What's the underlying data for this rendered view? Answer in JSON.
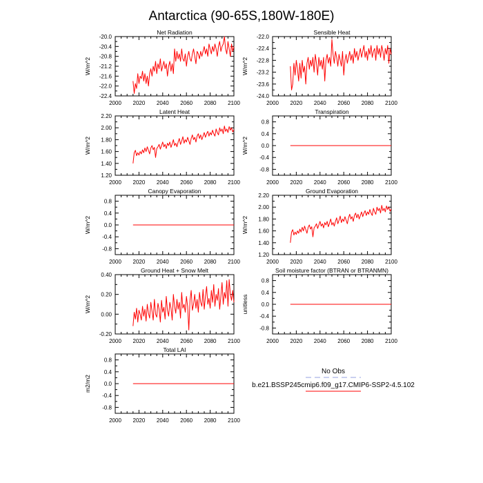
{
  "figure": {
    "title": "Antarctica (90-65S,180W-180E)"
  },
  "legend": {
    "entries": [
      {
        "label": "No Obs",
        "color": "#aab4e6",
        "style": "dashed"
      },
      {
        "label": "b.e21.BSSP245cmip6.f09_g17.CMIP6-SSP2-4.5.102",
        "color": "#ff0000",
        "style": "solid"
      }
    ]
  },
  "chart_data": [
    {
      "type": "line",
      "title": "Net Radiation",
      "ylabel": "W/m^2",
      "xlabel": "",
      "xlim": [
        2000,
        2100
      ],
      "ylim": [
        -22.4,
        -20.0
      ],
      "xticks": [
        "2000",
        "2020",
        "2040",
        "2060",
        "2080",
        "2100"
      ],
      "yticks": [
        "-22.4",
        "-22.0",
        "-21.6",
        "-21.2",
        "-20.8",
        "-20.4",
        "-20.0"
      ],
      "series": [
        {
          "color": "#ff0000",
          "x_start": 2015,
          "x_end": 2100,
          "values": [
            -21.8,
            -22.3,
            -21.9,
            -22.1,
            -21.5,
            -21.9,
            -21.6,
            -21.7,
            -21.4,
            -21.8,
            -21.5,
            -21.9,
            -21.6,
            -22.0,
            -21.5,
            -21.3,
            -21.6,
            -21.2,
            -21.4,
            -21.0,
            -21.5,
            -21.1,
            -21.3,
            -20.9,
            -21.4,
            -21.2,
            -21.0,
            -21.3,
            -21.1,
            -21.6,
            -21.2,
            -21.0,
            -21.4,
            -21.1,
            -21.5,
            -20.5,
            -21.0,
            -20.6,
            -20.9,
            -20.7,
            -21.0,
            -20.5,
            -20.9,
            -21.0,
            -20.7,
            -21.2,
            -20.8,
            -20.6,
            -20.9,
            -21.0,
            -20.7,
            -20.5,
            -20.8,
            -21.1,
            -20.6,
            -20.7,
            -20.9,
            -20.6,
            -20.8,
            -20.6,
            -20.4,
            -20.7,
            -20.5,
            -20.8,
            -20.3,
            -20.5,
            -20.7,
            -20.4,
            -20.6,
            -20.3,
            -20.5,
            -20.8,
            -20.4,
            -20.2,
            -20.6,
            -20.4,
            -20.3,
            -20.0,
            -20.5,
            -20.7,
            -20.2,
            -20.5,
            -20.8,
            -20.3,
            -20.6,
            -20.4
          ]
        }
      ]
    },
    {
      "type": "line",
      "title": "Sensible Heat",
      "ylabel": "W/m^2",
      "xlabel": "",
      "xlim": [
        2000,
        2100
      ],
      "ylim": [
        -24.0,
        -22.0
      ],
      "xticks": [
        "2000",
        "2020",
        "2040",
        "2060",
        "2080",
        "2100"
      ],
      "yticks": [
        "-24.0",
        "-23.6",
        "-23.2",
        "-22.8",
        "-22.4",
        "-22.0"
      ],
      "series": [
        {
          "color": "#ff0000",
          "x_start": 2015,
          "x_end": 2100,
          "values": [
            -23.0,
            -23.8,
            -23.6,
            -22.9,
            -23.3,
            -22.8,
            -23.1,
            -23.5,
            -22.9,
            -23.4,
            -22.8,
            -23.2,
            -23.0,
            -23.6,
            -22.9,
            -22.7,
            -23.1,
            -22.8,
            -23.0,
            -22.7,
            -23.2,
            -22.6,
            -22.9,
            -23.3,
            -22.7,
            -23.0,
            -22.8,
            -23.1,
            -22.7,
            -23.5,
            -22.8,
            -22.6,
            -22.9,
            -22.7,
            -23.0,
            -22.1,
            -22.6,
            -22.9,
            -22.5,
            -22.7,
            -23.0,
            -22.6,
            -22.8,
            -23.0,
            -22.5,
            -23.3,
            -22.8,
            -22.6,
            -22.9,
            -22.7,
            -22.5,
            -22.8,
            -22.6,
            -22.9,
            -22.4,
            -22.7,
            -22.5,
            -22.8,
            -22.6,
            -22.4,
            -22.7,
            -22.5,
            -22.3,
            -22.7,
            -22.5,
            -22.8,
            -22.4,
            -22.6,
            -22.3,
            -22.7,
            -22.5,
            -22.4,
            -22.8,
            -22.3,
            -22.6,
            -22.4,
            -22.7,
            -22.3,
            -22.5,
            -22.8,
            -22.4,
            -22.6,
            -22.3,
            -22.9,
            -22.4,
            -22.6
          ]
        }
      ]
    },
    {
      "type": "line",
      "title": "Latent Heat",
      "ylabel": "W/m^2",
      "xlabel": "",
      "xlim": [
        2000,
        2100
      ],
      "ylim": [
        1.2,
        2.2
      ],
      "xticks": [
        "2000",
        "2020",
        "2040",
        "2060",
        "2080",
        "2100"
      ],
      "yticks": [
        "1.20",
        "1.40",
        "1.60",
        "1.80",
        "2.00",
        "2.20"
      ],
      "series": [
        {
          "color": "#ff0000",
          "x_start": 2015,
          "x_end": 2100,
          "values": [
            1.4,
            1.58,
            1.62,
            1.53,
            1.58,
            1.54,
            1.6,
            1.56,
            1.63,
            1.58,
            1.66,
            1.6,
            1.68,
            1.62,
            1.56,
            1.66,
            1.7,
            1.63,
            1.67,
            1.5,
            1.65,
            1.68,
            1.72,
            1.64,
            1.7,
            1.76,
            1.68,
            1.72,
            1.65,
            1.74,
            1.7,
            1.76,
            1.67,
            1.73,
            1.8,
            1.7,
            1.74,
            1.68,
            1.76,
            1.82,
            1.72,
            1.78,
            1.85,
            1.74,
            1.8,
            1.76,
            1.84,
            1.78,
            1.72,
            1.82,
            1.88,
            1.8,
            1.84,
            1.76,
            1.86,
            1.9,
            1.82,
            1.88,
            1.8,
            1.86,
            1.92,
            1.84,
            1.9,
            1.94,
            1.86,
            1.92,
            1.88,
            1.96,
            1.9,
            1.86,
            1.98,
            1.92,
            1.88,
            2.0,
            1.94,
            1.98,
            1.9,
            2.03,
            1.94,
            1.98,
            1.92,
            2.02,
            1.96,
            2.0,
            1.93,
            1.97
          ]
        }
      ]
    },
    {
      "type": "line",
      "title": "Transpiration",
      "ylabel": "W/m^2",
      "xlabel": "",
      "xlim": [
        2000,
        2100
      ],
      "ylim": [
        -1.0,
        1.0
      ],
      "xticks": [
        "2000",
        "2020",
        "2040",
        "2060",
        "2080",
        "2100"
      ],
      "yticks": [
        "-0.8",
        "-0.4",
        "0.0",
        "0.4",
        "0.8"
      ],
      "series": [
        {
          "color": "#ff0000",
          "x_start": 2015,
          "x_end": 2100,
          "values": [
            0.0,
            0.0
          ]
        }
      ]
    },
    {
      "type": "line",
      "title": "Canopy Evaporation",
      "ylabel": "W/m^2",
      "xlabel": "",
      "xlim": [
        2000,
        2100
      ],
      "ylim": [
        -1.0,
        1.0
      ],
      "xticks": [
        "2000",
        "2020",
        "2040",
        "2060",
        "2080",
        "2100"
      ],
      "yticks": [
        "-0.8",
        "-0.4",
        "0.0",
        "0.4",
        "0.8"
      ],
      "series": [
        {
          "color": "#ff0000",
          "x_start": 2015,
          "x_end": 2100,
          "values": [
            0.0,
            0.0
          ]
        }
      ]
    },
    {
      "type": "line",
      "title": "Ground Evaporation",
      "ylabel": "W/m^2",
      "xlabel": "",
      "xlim": [
        2000,
        2100
      ],
      "ylim": [
        1.2,
        2.2
      ],
      "xticks": [
        "2000",
        "2020",
        "2040",
        "2060",
        "2080",
        "2100"
      ],
      "yticks": [
        "1.20",
        "1.40",
        "1.60",
        "1.80",
        "2.00",
        "2.20"
      ],
      "series": [
        {
          "color": "#ff0000",
          "x_start": 2015,
          "x_end": 2100,
          "values": [
            1.4,
            1.58,
            1.62,
            1.53,
            1.58,
            1.54,
            1.6,
            1.56,
            1.63,
            1.58,
            1.66,
            1.6,
            1.68,
            1.62,
            1.56,
            1.66,
            1.7,
            1.63,
            1.67,
            1.5,
            1.65,
            1.68,
            1.72,
            1.64,
            1.7,
            1.76,
            1.68,
            1.72,
            1.65,
            1.74,
            1.7,
            1.76,
            1.67,
            1.73,
            1.8,
            1.7,
            1.74,
            1.68,
            1.76,
            1.82,
            1.72,
            1.78,
            1.85,
            1.74,
            1.8,
            1.76,
            1.84,
            1.78,
            1.72,
            1.82,
            1.88,
            1.8,
            1.84,
            1.76,
            1.86,
            1.9,
            1.82,
            1.88,
            1.8,
            1.86,
            1.92,
            1.84,
            1.9,
            1.94,
            1.86,
            1.92,
            1.88,
            1.96,
            1.9,
            1.86,
            1.98,
            1.92,
            1.88,
            2.0,
            1.94,
            1.98,
            1.9,
            2.03,
            1.94,
            1.98,
            1.92,
            2.02,
            1.96,
            2.0,
            1.93,
            1.97
          ]
        }
      ]
    },
    {
      "type": "line",
      "title": "Ground Heat + Snow Melt",
      "ylabel": "W/m^2",
      "xlabel": "",
      "xlim": [
        2000,
        2100
      ],
      "ylim": [
        -0.2,
        0.4
      ],
      "xticks": [
        "2000",
        "2020",
        "2040",
        "2060",
        "2080",
        "2100"
      ],
      "yticks": [
        "-0.20",
        "0.00",
        "0.20",
        "0.40"
      ],
      "series": [
        {
          "color": "#ff0000",
          "x_start": 2015,
          "x_end": 2100,
          "values": [
            -0.12,
            0.02,
            -0.05,
            0.06,
            -0.08,
            0.04,
            0.0,
            -0.06,
            0.08,
            -0.02,
            0.05,
            -0.07,
            0.1,
            0.01,
            -0.04,
            0.12,
            0.03,
            -0.06,
            0.15,
            0.0,
            -0.03,
            0.11,
            0.05,
            -0.08,
            0.14,
            0.02,
            0.07,
            -0.05,
            0.18,
            0.04,
            -0.02,
            0.12,
            0.06,
            -0.06,
            0.2,
            0.08,
            0.01,
            0.15,
            0.05,
            0.12,
            -0.04,
            0.22,
            0.06,
            0.1,
            0.02,
            0.18,
            0.08,
            -0.16,
            0.14,
            0.24,
            0.04,
            0.1,
            0.2,
            0.06,
            0.15,
            0.02,
            0.22,
            0.12,
            0.08,
            0.25,
            0.05,
            0.18,
            0.28,
            0.1,
            0.16,
            0.06,
            0.24,
            0.12,
            0.3,
            0.08,
            0.2,
            0.14,
            0.26,
            0.05,
            0.18,
            0.32,
            0.1,
            0.22,
            0.16,
            0.34,
            0.08,
            0.35,
            0.2,
            0.14,
            0.24,
            0.12
          ]
        }
      ]
    },
    {
      "type": "line",
      "title": "Soil moisture factor (BTRAN or BTRANMN)",
      "ylabel": "unitless",
      "xlabel": "",
      "xlim": [
        2000,
        2100
      ],
      "ylim": [
        -1.0,
        1.0
      ],
      "xticks": [
        "2000",
        "2020",
        "2040",
        "2060",
        "2080",
        "2100"
      ],
      "yticks": [
        "-0.8",
        "-0.4",
        "0.0",
        "0.4",
        "0.8"
      ],
      "series": [
        {
          "color": "#ff0000",
          "x_start": 2015,
          "x_end": 2100,
          "values": [
            0.0,
            0.0
          ]
        }
      ]
    },
    {
      "type": "line",
      "title": "Total LAI",
      "ylabel": "m2/m2",
      "xlabel": "",
      "xlim": [
        2000,
        2100
      ],
      "ylim": [
        -1.0,
        1.0
      ],
      "xticks": [
        "2000",
        "2020",
        "2040",
        "2060",
        "2080",
        "2100"
      ],
      "yticks": [
        "-0.8",
        "-0.4",
        "0.0",
        "0.4",
        "0.8"
      ],
      "series": [
        {
          "color": "#ff0000",
          "x_start": 2015,
          "x_end": 2100,
          "values": [
            0.0,
            0.0
          ]
        }
      ]
    }
  ]
}
